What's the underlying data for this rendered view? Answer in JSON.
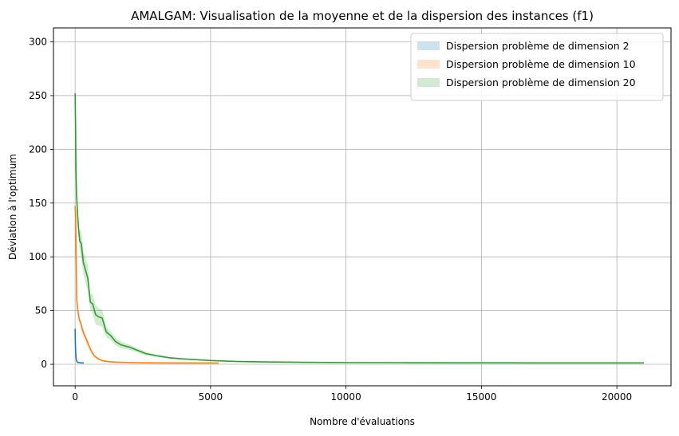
{
  "chart_data": {
    "type": "line",
    "title": "AMALGAM: Visualisation de la moyenne et de la dispersion des instances (f1)",
    "xlabel": "Nombre d'évaluations",
    "ylabel": "Déviation à l'optimum",
    "xlim": [
      -800,
      22000
    ],
    "ylim": [
      -20,
      313
    ],
    "xticks": [
      0,
      5000,
      10000,
      15000,
      20000
    ],
    "yticks": [
      0,
      50,
      100,
      150,
      200,
      250,
      300
    ],
    "grid": true,
    "legend_position": "top-right",
    "series": [
      {
        "name": "Dispersion problème de dimension 2",
        "line_color": "#1f77b4",
        "band_color": "#1f77b4",
        "x": [
          0,
          10,
          25,
          45,
          70,
          100,
          150,
          200,
          260,
          320
        ],
        "y": [
          33,
          18,
          9,
          4,
          2.5,
          1.8,
          1.5,
          1.4,
          1.3,
          1.3
        ],
        "low": [
          30,
          15,
          7.5,
          3.5,
          2.2,
          1.6,
          1.4,
          1.3,
          1.2,
          1.2
        ],
        "high": [
          36,
          21,
          10.5,
          4.5,
          2.8,
          2.0,
          1.6,
          1.5,
          1.4,
          1.4
        ]
      },
      {
        "name": "Dispersion problème de dimension 10",
        "line_color": "#ff7f0e",
        "band_color": "#ff7f0e",
        "x": [
          0,
          20,
          40,
          60,
          100,
          150,
          200,
          260,
          330,
          400,
          500,
          600,
          700,
          850,
          1000,
          1200,
          1500,
          2000,
          2500,
          3000,
          4000,
          5300
        ],
        "y": [
          147,
          138,
          95,
          60,
          50,
          42,
          39,
          33,
          28,
          24,
          18,
          12,
          8,
          5,
          3.5,
          2.5,
          2,
          1.6,
          1.4,
          1.3,
          1.2,
          1.2
        ],
        "low": [
          144,
          134,
          90,
          56,
          47,
          39,
          36,
          30,
          25,
          21,
          15.5,
          10,
          6.5,
          4,
          2.8,
          2.0,
          1.6,
          1.4,
          1.2,
          1.1,
          1.0,
          1.0
        ],
        "high": [
          150,
          142,
          100,
          64,
          53,
          45,
          42,
          36,
          31,
          27,
          20.5,
          14,
          9.5,
          6,
          4.2,
          3.0,
          2.4,
          1.8,
          1.6,
          1.5,
          1.4,
          1.4
        ]
      },
      {
        "name": "Dispersion problème de dimension 20",
        "line_color": "#2ca02c",
        "band_color": "#2ca02c",
        "x": [
          0,
          15,
          30,
          50,
          80,
          120,
          170,
          230,
          300,
          380,
          470,
          560,
          650,
          760,
          880,
          1000,
          1150,
          1300,
          1500,
          1700,
          2000,
          2300,
          2600,
          3000,
          3500,
          4000,
          5000,
          6000,
          7000,
          8500,
          10000,
          12000,
          14000,
          17000,
          21000
        ],
        "y": [
          252,
          225,
          185,
          158,
          145,
          128,
          115,
          112,
          95,
          88,
          80,
          58,
          56,
          46,
          44,
          43,
          30,
          27,
          21,
          18,
          16,
          13,
          10,
          8,
          6,
          5,
          3.5,
          2.6,
          2.2,
          1.8,
          1.6,
          1.5,
          1.4,
          1.3,
          1.3
        ],
        "low": [
          250,
          222,
          180,
          152,
          138,
          120,
          106,
          100,
          84,
          76,
          68,
          50,
          47,
          37,
          36,
          35,
          25,
          23,
          17.5,
          15,
          13.5,
          11,
          8.5,
          7,
          5.2,
          4.4,
          3.0,
          2.3,
          1.9,
          1.6,
          1.4,
          1.3,
          1.2,
          1.1,
          1.1
        ],
        "high": [
          254,
          228,
          190,
          164,
          152,
          136,
          124,
          124,
          106,
          100,
          92,
          66,
          65,
          55,
          52,
          51,
          35,
          31,
          24.5,
          21,
          18.5,
          15,
          11.5,
          9,
          6.8,
          5.6,
          4.0,
          2.9,
          2.5,
          2.0,
          1.8,
          1.7,
          1.6,
          1.5,
          1.5
        ]
      }
    ]
  }
}
